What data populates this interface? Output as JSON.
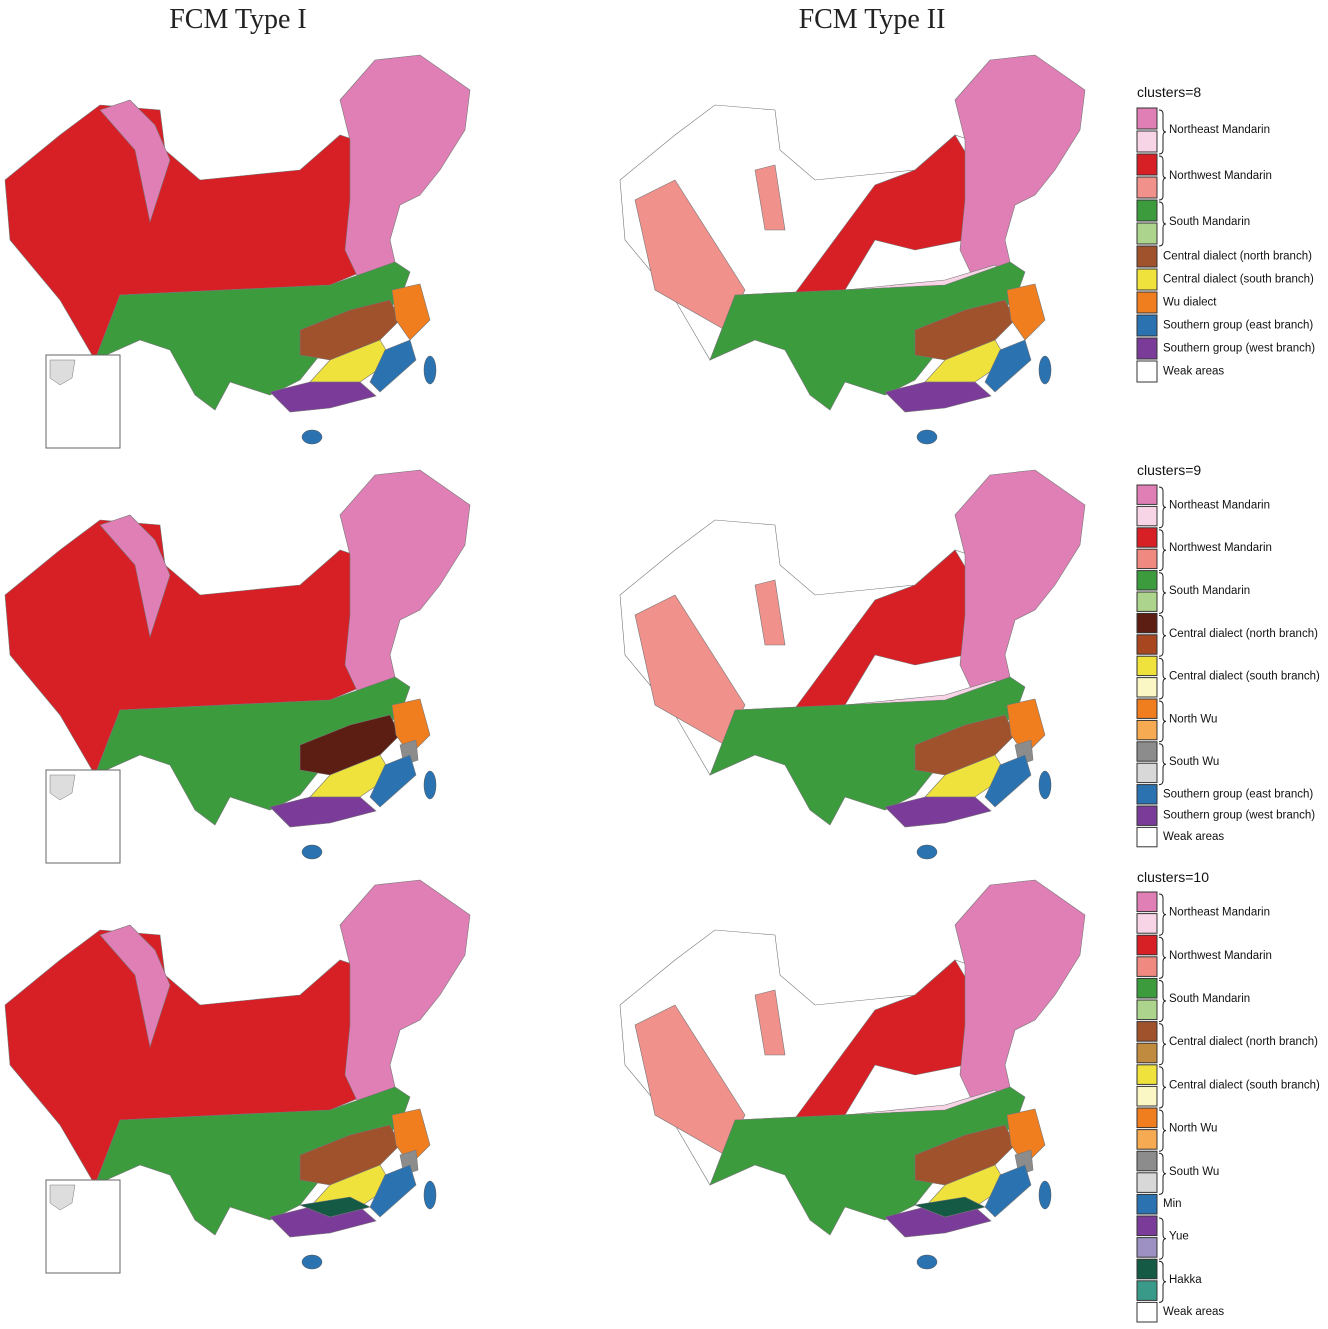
{
  "columns": [
    "FCM Type I",
    "FCM Type II"
  ],
  "legends": [
    {
      "title": "clusters=8",
      "groups": [
        {
          "label": "Northeast Mandarin",
          "colors": [
            "#e07fb6",
            "#f8d4e7"
          ]
        },
        {
          "label": "Northwest Mandarin",
          "colors": [
            "#d71f26",
            "#f0918c"
          ]
        },
        {
          "label": "South Mandarin",
          "colors": [
            "#3b9b3d",
            "#acd48c"
          ]
        },
        {
          "label": "Central dialect (north branch)",
          "colors": [
            "#a0522d"
          ]
        },
        {
          "label": "Central dialect (south branch)",
          "colors": [
            "#efe23c"
          ]
        },
        {
          "label": "Wu dialect",
          "colors": [
            "#f07e1f"
          ]
        },
        {
          "label": "Southern group (east branch)",
          "colors": [
            "#2a72b0"
          ]
        },
        {
          "label": "Southern group (west branch)",
          "colors": [
            "#7b3c99"
          ]
        },
        {
          "label": "Weak areas",
          "colors": [
            "#ffffff"
          ]
        }
      ]
    },
    {
      "title": "clusters=9",
      "groups": [
        {
          "label": "Northeast Mandarin",
          "colors": [
            "#e07fb6",
            "#f8d4e7"
          ]
        },
        {
          "label": "Northwest Mandarin",
          "colors": [
            "#d71f26",
            "#f08a80"
          ]
        },
        {
          "label": "South Mandarin",
          "colors": [
            "#3b9b3d",
            "#acd48c"
          ]
        },
        {
          "label": "Central dialect (north branch)",
          "colors": [
            "#5c1e12",
            "#a8461f"
          ]
        },
        {
          "label": "Central dialect (south branch)",
          "colors": [
            "#efe23c",
            "#fbf7c4"
          ]
        },
        {
          "label": "North Wu",
          "colors": [
            "#f07e1f",
            "#f6aa52"
          ]
        },
        {
          "label": "South Wu",
          "colors": [
            "#8c8c8c",
            "#d8d8d8"
          ]
        },
        {
          "label": "Southern group (east branch)",
          "colors": [
            "#2a72b0"
          ]
        },
        {
          "label": "Southern group (west branch)",
          "colors": [
            "#7b3c99"
          ]
        },
        {
          "label": "Weak areas",
          "colors": [
            "#ffffff"
          ]
        }
      ]
    },
    {
      "title": "clusters=10",
      "groups": [
        {
          "label": "Northeast Mandarin",
          "colors": [
            "#e07fb6",
            "#f8d4e7"
          ]
        },
        {
          "label": "Northwest Mandarin",
          "colors": [
            "#d71f26",
            "#f08a80"
          ]
        },
        {
          "label": "South Mandarin",
          "colors": [
            "#3b9b3d",
            "#acd48c"
          ]
        },
        {
          "label": "Central dialect (north branch)",
          "colors": [
            "#a0522d",
            "#c18b3f"
          ]
        },
        {
          "label": "Central dialect (south branch)",
          "colors": [
            "#efe23c",
            "#fbf7c4"
          ]
        },
        {
          "label": "North Wu",
          "colors": [
            "#f07e1f",
            "#f6aa52"
          ]
        },
        {
          "label": "South Wu",
          "colors": [
            "#8c8c8c",
            "#d8d8d8"
          ]
        },
        {
          "label": "Min",
          "colors": [
            "#2a72b0"
          ]
        },
        {
          "label": "Yue",
          "colors": [
            "#7b3c99",
            "#9d91c4"
          ]
        },
        {
          "label": "Hakka",
          "colors": [
            "#155a45",
            "#3a9a8a"
          ]
        },
        {
          "label": "Weak areas",
          "colors": [
            "#ffffff"
          ]
        }
      ]
    }
  ]
}
